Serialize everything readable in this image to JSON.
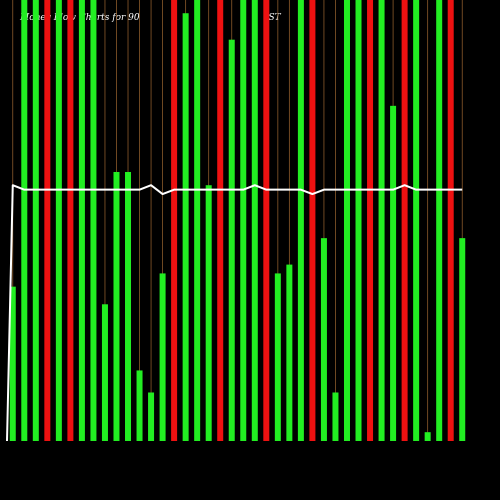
{
  "chart_data": {
    "type": "bar",
    "title": "Money Flow Charts for 90",
    "subtitle": "(ST",
    "xlabel": "",
    "ylabel": "",
    "ylim": [
      0,
      1
    ],
    "grid": false,
    "colors": {
      "background": "#000000",
      "positive": "#22ee22",
      "negative": "#ee1111",
      "gridline": "#8b5a2b",
      "line": "#ffffff",
      "text": "#ffffff"
    },
    "value_units": "fraction of chart height (no printed scale)",
    "bars": [
      {
        "value": 0.35,
        "flow": "positive"
      },
      {
        "value": 1.0,
        "flow": "positive"
      },
      {
        "value": 1.0,
        "flow": "positive"
      },
      {
        "value": 1.0,
        "flow": "negative"
      },
      {
        "value": 1.0,
        "flow": "positive"
      },
      {
        "value": 1.0,
        "flow": "negative"
      },
      {
        "value": 1.0,
        "flow": "positive"
      },
      {
        "value": 1.0,
        "flow": "positive"
      },
      {
        "value": 0.31,
        "flow": "positive"
      },
      {
        "value": 0.61,
        "flow": "positive"
      },
      {
        "value": 0.61,
        "flow": "positive"
      },
      {
        "value": 0.16,
        "flow": "positive"
      },
      {
        "value": 0.11,
        "flow": "positive"
      },
      {
        "value": 0.38,
        "flow": "positive"
      },
      {
        "value": 1.0,
        "flow": "negative"
      },
      {
        "value": 0.97,
        "flow": "positive"
      },
      {
        "value": 1.0,
        "flow": "positive"
      },
      {
        "value": 0.58,
        "flow": "positive"
      },
      {
        "value": 1.0,
        "flow": "negative"
      },
      {
        "value": 0.91,
        "flow": "positive"
      },
      {
        "value": 1.0,
        "flow": "positive"
      },
      {
        "value": 1.0,
        "flow": "positive"
      },
      {
        "value": 1.0,
        "flow": "negative"
      },
      {
        "value": 0.38,
        "flow": "positive"
      },
      {
        "value": 0.4,
        "flow": "positive"
      },
      {
        "value": 1.0,
        "flow": "positive"
      },
      {
        "value": 1.0,
        "flow": "negative"
      },
      {
        "value": 0.46,
        "flow": "positive"
      },
      {
        "value": 0.11,
        "flow": "positive"
      },
      {
        "value": 1.0,
        "flow": "positive"
      },
      {
        "value": 1.0,
        "flow": "positive"
      },
      {
        "value": 1.0,
        "flow": "negative"
      },
      {
        "value": 1.0,
        "flow": "positive"
      },
      {
        "value": 0.76,
        "flow": "positive"
      },
      {
        "value": 1.0,
        "flow": "negative"
      },
      {
        "value": 1.0,
        "flow": "positive"
      },
      {
        "value": 0.02,
        "flow": "positive"
      },
      {
        "value": 1.0,
        "flow": "positive"
      },
      {
        "value": 1.0,
        "flow": "negative"
      },
      {
        "value": 0.46,
        "flow": "positive"
      }
    ],
    "line": [
      0.0,
      0.58,
      0.57,
      0.57,
      0.57,
      0.57,
      0.57,
      0.57,
      0.57,
      0.57,
      0.57,
      0.57,
      0.57,
      0.58,
      0.56,
      0.57,
      0.57,
      0.57,
      0.57,
      0.57,
      0.57,
      0.57,
      0.58,
      0.57,
      0.57,
      0.57,
      0.57,
      0.56,
      0.57,
      0.57,
      0.57,
      0.57,
      0.57,
      0.57,
      0.57,
      0.58,
      0.57,
      0.57,
      0.57,
      0.57,
      0.57
    ]
  }
}
